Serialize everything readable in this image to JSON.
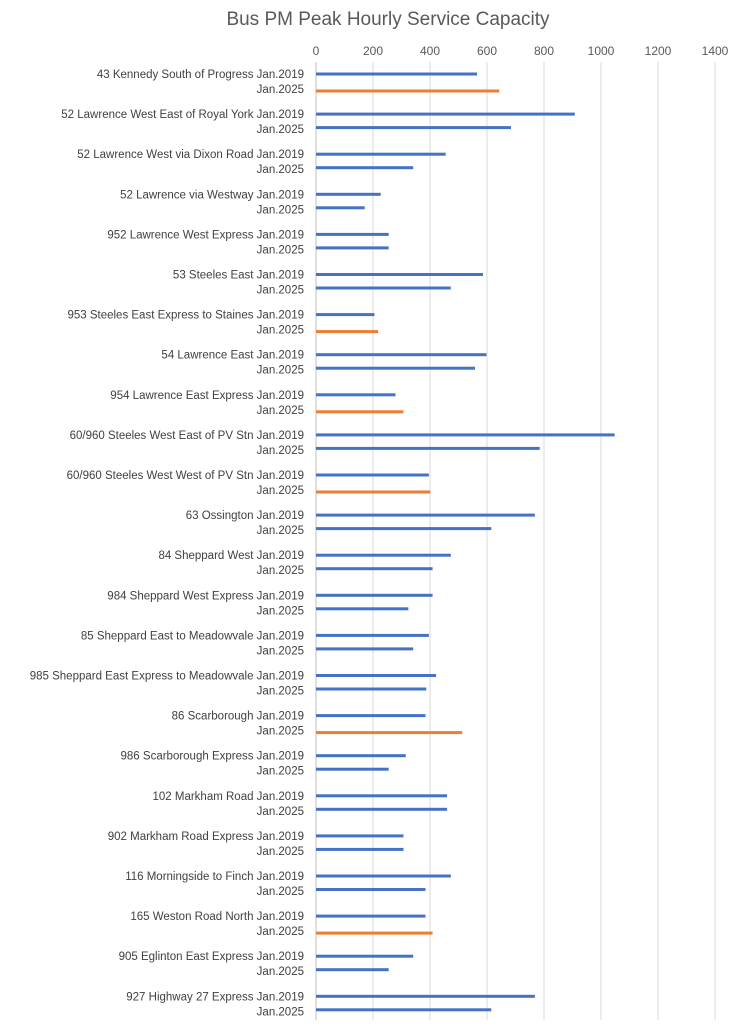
{
  "chart_data": {
    "type": "bar",
    "orientation": "horizontal",
    "title": "Bus PM Peak Hourly Service Capacity",
    "xlim": [
      0,
      1400
    ],
    "x_ticks": [
      "0",
      "200",
      "400",
      "600",
      "800",
      "1000",
      "1200",
      "1400"
    ],
    "grid": true,
    "legend": "none",
    "period_labels": [
      "Jan.2019",
      "Jan.2025"
    ],
    "categories": [
      "43 Kennedy South of Progress",
      "52 Lawrence West East of Royal York",
      "52 Lawrence West via Dixon Road",
      "52 Lawrence via Westway",
      "952 Lawrence West Express",
      "53 Steeles East",
      "953 Steeles East Express to Staines",
      "54 Lawrence East",
      "954 Lawrence East Express",
      "60/960 Steeles West East of PV Stn",
      "60/960 Steeles West West of PV Stn",
      "63 Ossington",
      "84 Sheppard West",
      "984 Sheppard West Express",
      "85 Sheppard East to Meadowvale",
      "985 Sheppard East Express to Meadowvale",
      "86 Scarborough",
      "986 Scarborough Express",
      "102 Markham Road",
      "902 Markham Road Express",
      "116 Morningside to Finch",
      "165 Weston Road North",
      "905 Eglinton East Express",
      "927 Highway 27 Express"
    ],
    "series": [
      {
        "period": "Jan.2019",
        "color": "#4472C4",
        "values": [
          565,
          908,
          455,
          227,
          255,
          586,
          205,
          598,
          279,
          1048,
          396,
          768,
          473,
          409,
          396,
          421,
          384,
          315,
          460,
          307,
          473,
          384,
          341,
          768
        ]
      },
      {
        "period": "Jan.2025",
        "color": "#4472C4",
        "highlight_color": "#ED7D31",
        "values": [
          643,
          684,
          341,
          171,
          255,
          473,
          218,
          558,
          307,
          785,
          401,
          615,
          409,
          324,
          341,
          387,
          513,
          255,
          460,
          307,
          384,
          409,
          255,
          615
        ],
        "highlighted": [
          true,
          false,
          false,
          false,
          false,
          false,
          true,
          false,
          true,
          false,
          true,
          false,
          false,
          false,
          false,
          false,
          true,
          false,
          false,
          false,
          false,
          true,
          false,
          false
        ]
      }
    ]
  }
}
